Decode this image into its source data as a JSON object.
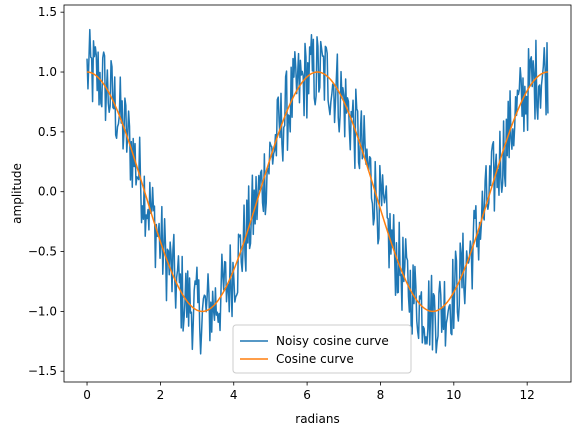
{
  "chart_data": {
    "type": "line",
    "title": "",
    "xlabel": "radians",
    "ylabel": "amplitude",
    "xlim": [
      -0.628,
      13.195
    ],
    "ylim": [
      -1.59,
      1.56
    ],
    "xticks": [
      0,
      2,
      4,
      6,
      8,
      10,
      12
    ],
    "yticks": [
      -1.5,
      -1.0,
      -0.5,
      0.0,
      0.5,
      1.0,
      1.5
    ],
    "xtick_labels": [
      "0",
      "2",
      "4",
      "6",
      "8",
      "10",
      "12"
    ],
    "ytick_labels": [
      "−1.5",
      "−1.0",
      "−0.5",
      "0.0",
      "0.5",
      "1.0",
      "1.5"
    ],
    "grid": false,
    "legend_position": "lower-center",
    "series": [
      {
        "name": "Noisy cosine curve",
        "color": "#1f77b4",
        "x_range": [
          0,
          12.566
        ],
        "points": 500,
        "underlying": "cos(x)",
        "noise_amplitude": 0.2
      },
      {
        "name": "Cosine curve",
        "color": "#ff7f0e",
        "x_range": [
          0,
          12.566
        ],
        "points": 500,
        "underlying": "cos(x)"
      }
    ]
  }
}
